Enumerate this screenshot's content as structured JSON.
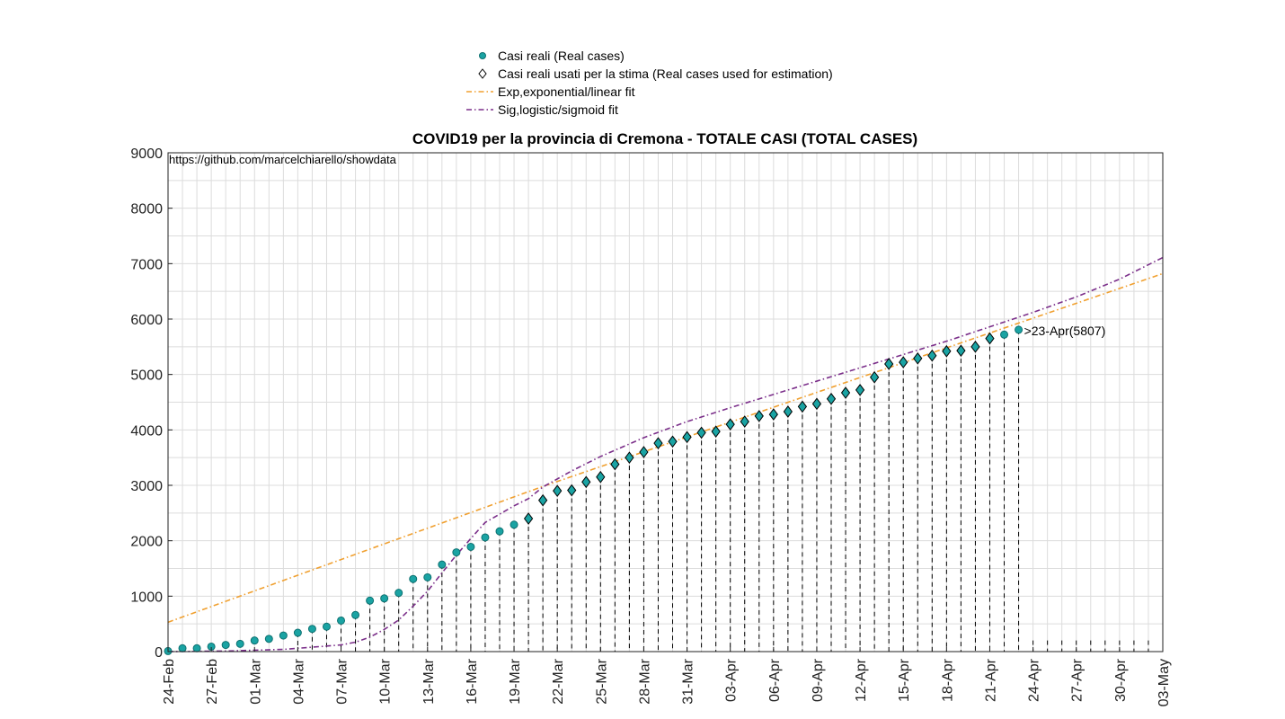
{
  "chart_data": {
    "type": "scatter",
    "title": "COVID19 per la provincia di Cremona - TOTALE CASI (TOTAL CASES)",
    "xlabel": "",
    "ylabel": "",
    "source_note": "https://github.com/marcelchiarello/showdata",
    "x_tick_labels": [
      "24-Feb",
      "27-Feb",
      "01-Mar",
      "04-Mar",
      "07-Mar",
      "10-Mar",
      "13-Mar",
      "16-Mar",
      "19-Mar",
      "22-Mar",
      "25-Mar",
      "28-Mar",
      "31-Mar",
      "03-Apr",
      "06-Apr",
      "09-Apr",
      "12-Apr",
      "15-Apr",
      "18-Apr",
      "21-Apr",
      "24-Apr",
      "27-Apr",
      "30-Apr",
      "03-May"
    ],
    "xlim": [
      0,
      69
    ],
    "ylim": [
      0,
      9000
    ],
    "y_ticks": [
      0,
      1000,
      2000,
      3000,
      4000,
      5000,
      6000,
      7000,
      8000,
      9000
    ],
    "grid": true,
    "legend_position": "top-center",
    "annotation": ">23-Apr(5807)",
    "series": [
      {
        "name": "Casi reali (Real cases)",
        "marker": "circle",
        "color": "#1aa3a3",
        "y": [
          10,
          60,
          60,
          90,
          120,
          140,
          200,
          230,
          290,
          340,
          410,
          450,
          560,
          660,
          920,
          960,
          1060,
          1310,
          1340,
          1570,
          1790,
          1890,
          2060,
          2170,
          2290,
          2400,
          2730,
          2900,
          2910,
          3060,
          3150,
          3380,
          3500,
          3600,
          3760,
          3790,
          3870,
          3950,
          3970,
          4100,
          4150,
          4250,
          4280,
          4330,
          4420,
          4470,
          4560,
          4670,
          4720,
          4950,
          5190,
          5220,
          5290,
          5340,
          5420,
          5430,
          5500,
          5650,
          5720,
          5807
        ]
      },
      {
        "name": "Casi reali usati per la stima (Real cases used for estimation)",
        "marker": "diamond",
        "color": "#000000",
        "start_day": 25,
        "end_day": 57
      },
      {
        "name": "Exp,exponential/linear fit",
        "style": "dash-dot",
        "color": "#f0a030",
        "segments": [
          [
            0,
            530
          ],
          [
            26,
            2980
          ],
          [
            69,
            6820
          ]
        ]
      },
      {
        "name": "Sig,logistic/sigmoid fit",
        "style": "dash-dot",
        "color": "#7b2f8a",
        "points": [
          [
            0,
            0
          ],
          [
            4,
            10
          ],
          [
            8,
            40
          ],
          [
            11,
            100
          ],
          [
            12,
            120
          ],
          [
            13,
            170
          ],
          [
            14,
            260
          ],
          [
            15,
            400
          ],
          [
            16,
            570
          ],
          [
            17,
            820
          ],
          [
            18,
            1090
          ],
          [
            19,
            1420
          ],
          [
            20,
            1740
          ],
          [
            21,
            2040
          ],
          [
            22,
            2330
          ],
          [
            24,
            2630
          ],
          [
            25,
            2760
          ],
          [
            26,
            2970
          ],
          [
            28,
            3260
          ],
          [
            30,
            3520
          ],
          [
            33,
            3860
          ],
          [
            36,
            4150
          ],
          [
            39,
            4400
          ],
          [
            42,
            4640
          ],
          [
            45,
            4880
          ],
          [
            48,
            5120
          ],
          [
            51,
            5360
          ],
          [
            54,
            5600
          ],
          [
            57,
            5860
          ],
          [
            60,
            6120
          ],
          [
            63,
            6400
          ],
          [
            66,
            6720
          ],
          [
            69,
            7110
          ]
        ]
      }
    ]
  }
}
